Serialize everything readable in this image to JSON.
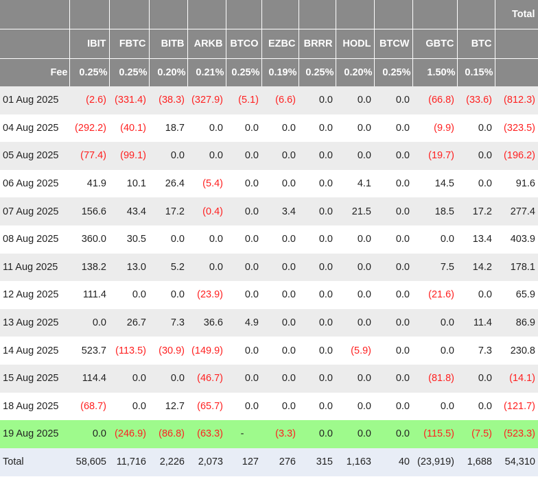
{
  "header": {
    "total_label": "Total",
    "fee_label": "Fee",
    "tickers": [
      "IBIT",
      "FBTC",
      "BITB",
      "ARKB",
      "BTCO",
      "EZBC",
      "BRRR",
      "HODL",
      "BTCW",
      "GBTC",
      "BTC"
    ],
    "fees": [
      "0.25%",
      "0.25%",
      "0.20%",
      "0.21%",
      "0.25%",
      "0.19%",
      "0.25%",
      "0.20%",
      "0.25%",
      "1.50%",
      "0.15%"
    ]
  },
  "rows": [
    {
      "date": "01 Aug 2025",
      "cells": [
        "(2.6)",
        "(331.4)",
        "(38.3)",
        "(327.9)",
        "(5.1)",
        "(6.6)",
        "0.0",
        "0.0",
        "0.0",
        "(66.8)",
        "(33.6)",
        "(812.3)"
      ]
    },
    {
      "date": "04 Aug 2025",
      "cells": [
        "(292.2)",
        "(40.1)",
        "18.7",
        "0.0",
        "0.0",
        "0.0",
        "0.0",
        "0.0",
        "0.0",
        "(9.9)",
        "0.0",
        "(323.5)"
      ]
    },
    {
      "date": "05 Aug 2025",
      "cells": [
        "(77.4)",
        "(99.1)",
        "0.0",
        "0.0",
        "0.0",
        "0.0",
        "0.0",
        "0.0",
        "0.0",
        "(19.7)",
        "0.0",
        "(196.2)"
      ]
    },
    {
      "date": "06 Aug 2025",
      "cells": [
        "41.9",
        "10.1",
        "26.4",
        "(5.4)",
        "0.0",
        "0.0",
        "0.0",
        "4.1",
        "0.0",
        "14.5",
        "0.0",
        "91.6"
      ]
    },
    {
      "date": "07 Aug 2025",
      "cells": [
        "156.6",
        "43.4",
        "17.2",
        "(0.4)",
        "0.0",
        "3.4",
        "0.0",
        "21.5",
        "0.0",
        "18.5",
        "17.2",
        "277.4"
      ]
    },
    {
      "date": "08 Aug 2025",
      "cells": [
        "360.0",
        "30.5",
        "0.0",
        "0.0",
        "0.0",
        "0.0",
        "0.0",
        "0.0",
        "0.0",
        "0.0",
        "13.4",
        "403.9"
      ]
    },
    {
      "date": "11 Aug 2025",
      "cells": [
        "138.2",
        "13.0",
        "5.2",
        "0.0",
        "0.0",
        "0.0",
        "0.0",
        "0.0",
        "0.0",
        "7.5",
        "14.2",
        "178.1"
      ]
    },
    {
      "date": "12 Aug 2025",
      "cells": [
        "111.4",
        "0.0",
        "0.0",
        "(23.9)",
        "0.0",
        "0.0",
        "0.0",
        "0.0",
        "0.0",
        "(21.6)",
        "0.0",
        "65.9"
      ]
    },
    {
      "date": "13 Aug 2025",
      "cells": [
        "0.0",
        "26.7",
        "7.3",
        "36.6",
        "4.9",
        "0.0",
        "0.0",
        "0.0",
        "0.0",
        "0.0",
        "11.4",
        "86.9"
      ]
    },
    {
      "date": "14 Aug 2025",
      "cells": [
        "523.7",
        "(113.5)",
        "(30.9)",
        "(149.9)",
        "0.0",
        "0.0",
        "0.0",
        "(5.9)",
        "0.0",
        "0.0",
        "7.3",
        "230.8"
      ]
    },
    {
      "date": "15 Aug 2025",
      "cells": [
        "114.4",
        "0.0",
        "0.0",
        "(46.7)",
        "0.0",
        "0.0",
        "0.0",
        "0.0",
        "0.0",
        "(81.8)",
        "0.0",
        "(14.1)"
      ]
    },
    {
      "date": "18 Aug 2025",
      "cells": [
        "(68.7)",
        "0.0",
        "12.7",
        "(65.7)",
        "0.0",
        "0.0",
        "0.0",
        "0.0",
        "0.0",
        "0.0",
        "0.0",
        "(121.7)"
      ]
    },
    {
      "date": "19 Aug 2025",
      "cells": [
        "0.0",
        "(246.9)",
        "(86.8)",
        "(63.3)",
        "-",
        "(3.3)",
        "0.0",
        "0.0",
        "0.0",
        "(115.5)",
        "(7.5)",
        "(523.3)"
      ]
    }
  ],
  "totals": {
    "label": "Total",
    "cells": [
      "58,605",
      "11,716",
      "2,226",
      "2,073",
      "127",
      "276",
      "315",
      "1,163",
      "40",
      "(23,919)",
      "1,688",
      "54,310"
    ]
  },
  "colors": {
    "header_bg": "#8a8a8a",
    "negative": "#ff2020",
    "highlight_row": "#9efa8c",
    "total_row": "#e8edf6"
  }
}
